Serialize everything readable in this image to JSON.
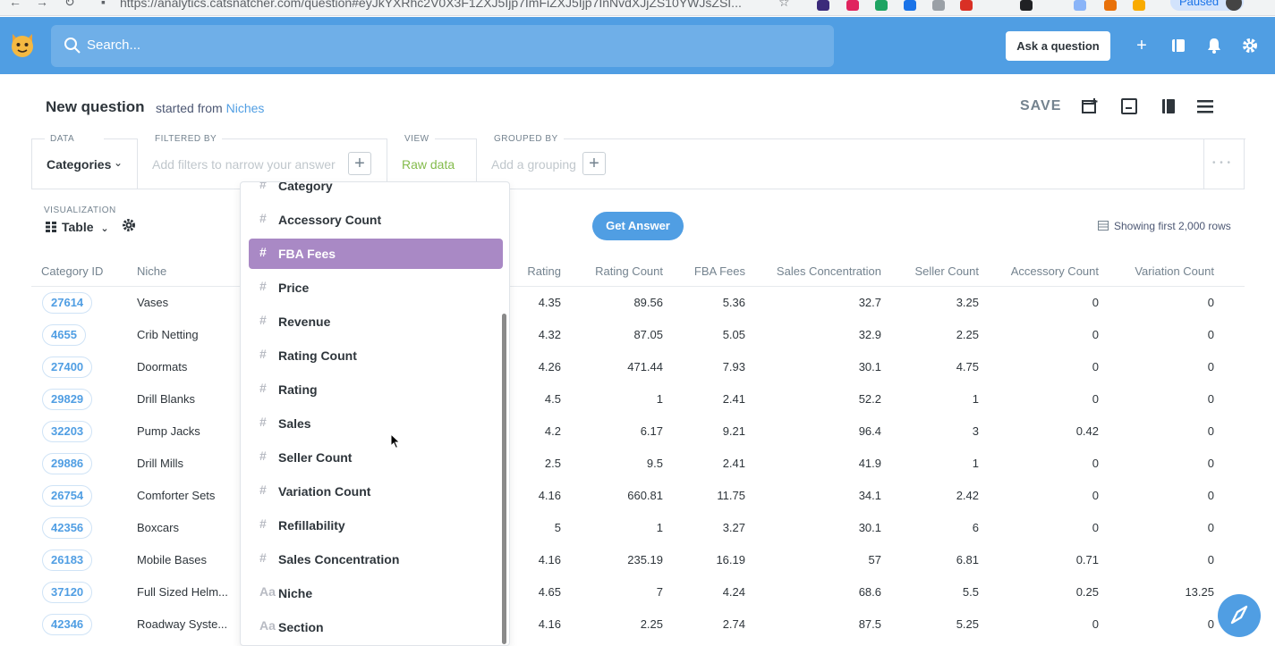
{
  "browser": {
    "url": "https://analytics.catsnatcher.com/question#eyJkYXRhc2V0X3F1ZXJ5Ijp7ImFiZXJ5Ijp7InNvdXJjZS10YWJsZSI...",
    "paused_label": "Paused"
  },
  "header": {
    "search_placeholder": "Search...",
    "ask_label": "Ask a question"
  },
  "question": {
    "title": "New question",
    "started_from": "started from",
    "source": "Niches",
    "save_label": "SAVE"
  },
  "builder": {
    "data_label": "DATA",
    "data_value": "Categories",
    "filter_label": "FILTERED BY",
    "filter_placeholder": "Add filters to narrow your answer",
    "view_label": "VIEW",
    "view_value": "Raw data",
    "group_label": "GROUPED BY",
    "group_placeholder": "Add a grouping",
    "more": "• • •"
  },
  "viz": {
    "label": "VISUALIZATION",
    "type": "Table",
    "get_answer": "Get Answer",
    "rows_info": "Showing first 2,000 rows"
  },
  "table": {
    "headers": [
      "Category ID",
      "Niche",
      "Rating",
      "Rating Count",
      "FBA Fees",
      "Sales Concentration",
      "Seller Count",
      "Accessory Count",
      "Variation Count"
    ],
    "rows": [
      [
        "27614",
        "Vases",
        "4.35",
        "89.56",
        "5.36",
        "32.7",
        "3.25",
        "0",
        "0"
      ],
      [
        "4655",
        "Crib Netting",
        "4.32",
        "87.05",
        "5.05",
        "32.9",
        "2.25",
        "0",
        "0"
      ],
      [
        "27400",
        "Doormats",
        "4.26",
        "471.44",
        "7.93",
        "30.1",
        "4.75",
        "0",
        "0"
      ],
      [
        "29829",
        "Drill Blanks",
        "4.5",
        "1",
        "2.41",
        "52.2",
        "1",
        "0",
        "0"
      ],
      [
        "32203",
        "Pump Jacks",
        "4.2",
        "6.17",
        "9.21",
        "96.4",
        "3",
        "0.42",
        "0"
      ],
      [
        "29886",
        "Drill Mills",
        "2.5",
        "9.5",
        "2.41",
        "41.9",
        "1",
        "0",
        "0"
      ],
      [
        "26754",
        "Comforter Sets",
        "4.16",
        "660.81",
        "11.75",
        "34.1",
        "2.42",
        "0",
        "0"
      ],
      [
        "42356",
        "Boxcars",
        "5",
        "1",
        "3.27",
        "30.1",
        "6",
        "0",
        "0"
      ],
      [
        "26183",
        "Mobile Bases",
        "4.16",
        "235.19",
        "16.19",
        "57",
        "6.81",
        "0.71",
        "0"
      ],
      [
        "37120",
        "Full Sized Helm...",
        "4.65",
        "7",
        "4.24",
        "68.6",
        "5.5",
        "0.25",
        "13.25"
      ],
      [
        "42346",
        "Roadway Syste...",
        "4.16",
        "2.25",
        "2.74",
        "87.5",
        "5.25",
        "0",
        "0"
      ]
    ]
  },
  "dropdown": {
    "items": [
      {
        "sym": "#",
        "label": "Category"
      },
      {
        "sym": "#",
        "label": "Accessory Count"
      },
      {
        "sym": "#",
        "label": "FBA Fees",
        "active": true
      },
      {
        "sym": "#",
        "label": "Price"
      },
      {
        "sym": "#",
        "label": "Revenue"
      },
      {
        "sym": "#",
        "label": "Rating Count"
      },
      {
        "sym": "#",
        "label": "Rating"
      },
      {
        "sym": "#",
        "label": "Sales"
      },
      {
        "sym": "#",
        "label": "Seller Count"
      },
      {
        "sym": "#",
        "label": "Variation Count"
      },
      {
        "sym": "#",
        "label": "Refillability"
      },
      {
        "sym": "#",
        "label": "Sales Concentration"
      },
      {
        "sym": "Aa",
        "label": "Niche"
      },
      {
        "sym": "Aa",
        "label": "Section"
      }
    ]
  },
  "colors": {
    "brand": "#509ee3",
    "accent_purple": "#a989c5",
    "view_green": "#84bb4c"
  }
}
